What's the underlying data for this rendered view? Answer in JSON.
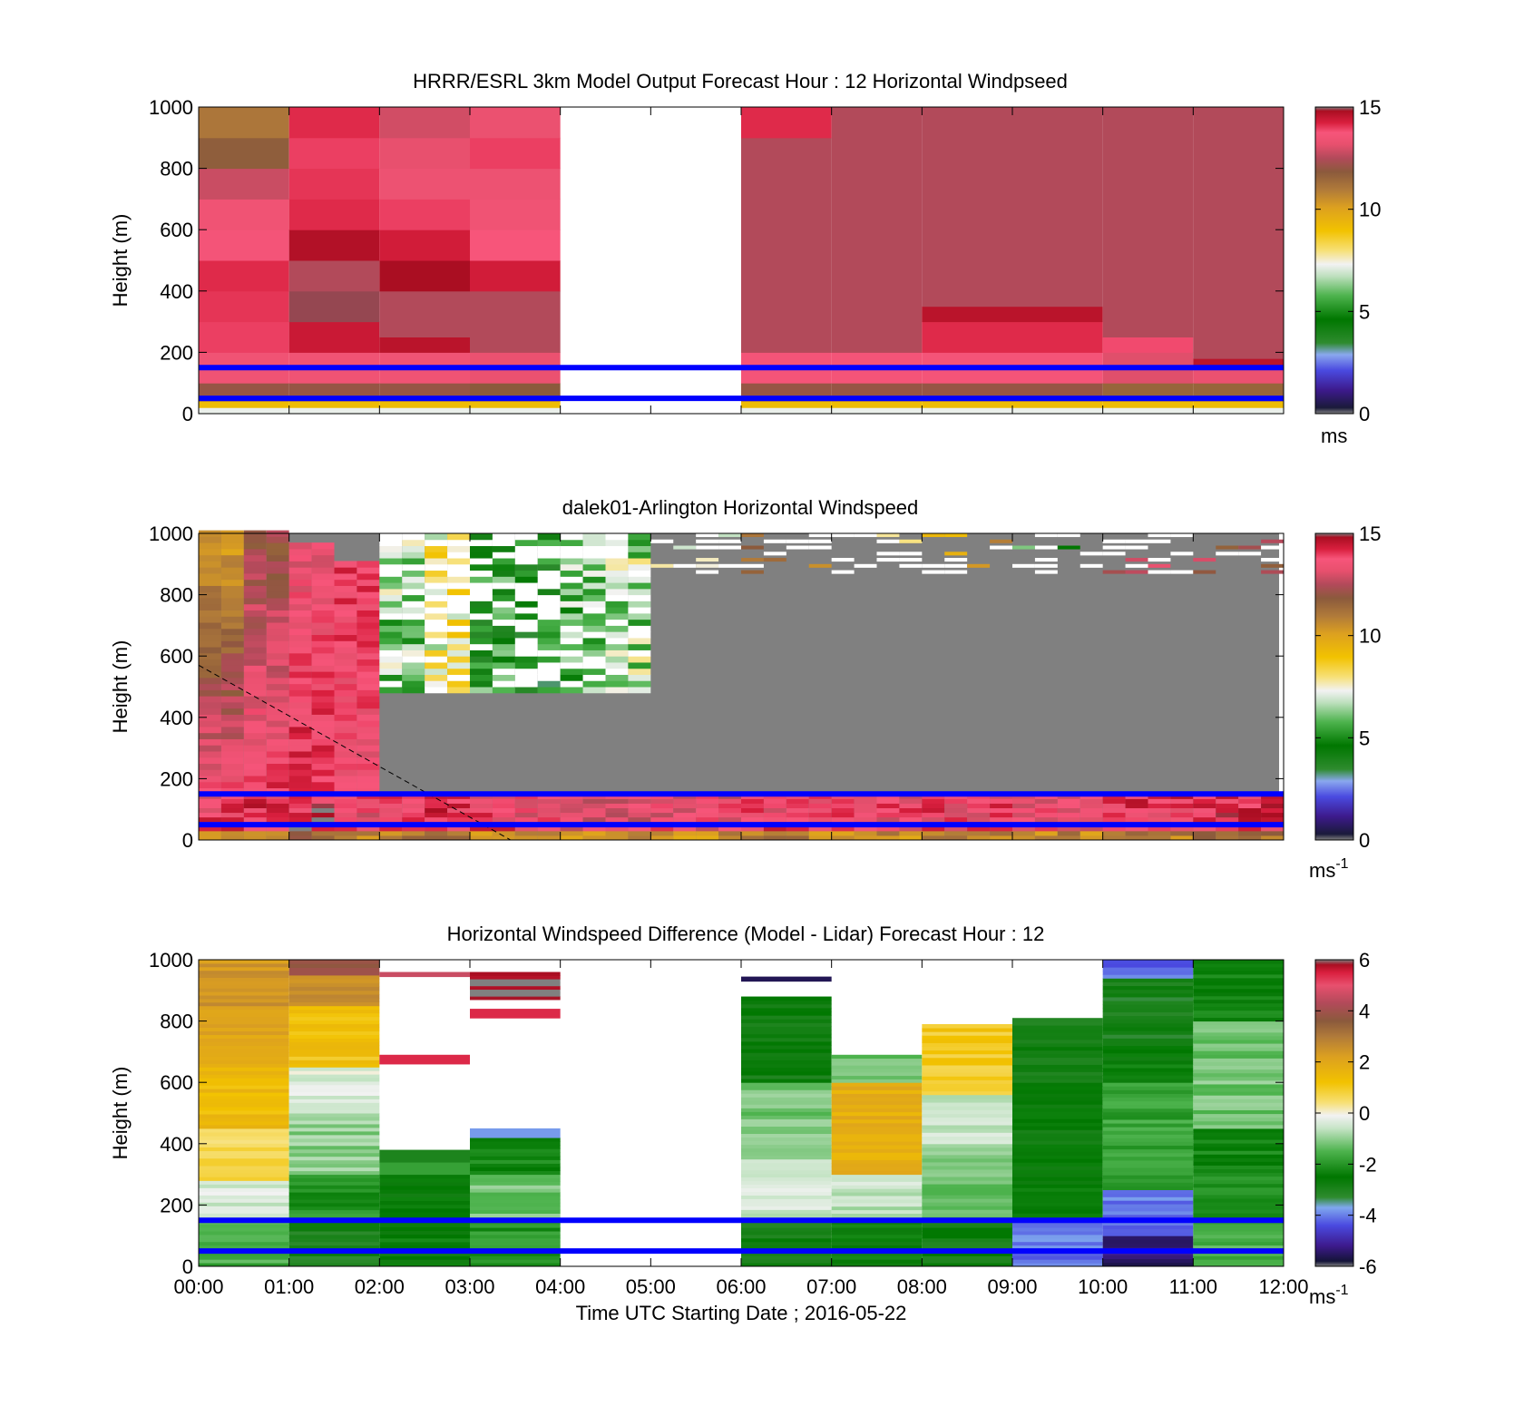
{
  "chart_data": [
    {
      "type": "heatmap",
      "title": "HRRR/ESRL 3km Model Output   Forecast Hour : 12 Horizontal Windpseed",
      "ylabel": "Height (m)",
      "xlabel": "",
      "ylim": [
        0,
        1000
      ],
      "yticks": [
        "0",
        "200",
        "400",
        "600",
        "800",
        "1000"
      ],
      "x_range_hours": [
        0,
        12
      ],
      "grid": false,
      "colorbar": {
        "ticks": [
          "0",
          "5",
          "10",
          "15"
        ],
        "min": 0,
        "max": 15,
        "unit_label": "ms",
        "unit_superscript": ""
      },
      "overlay_lines_m": [
        50,
        150
      ],
      "columns": [
        {
          "t0": 0,
          "t1": 1,
          "cells": [
            [
              0,
              20,
              7.5
            ],
            [
              20,
              40,
              9.5
            ],
            [
              40,
              60,
              11
            ],
            [
              60,
              100,
              12.5
            ],
            [
              100,
              200,
              14
            ],
            [
              200,
              300,
              14.5
            ],
            [
              300,
              400,
              14.6
            ],
            [
              400,
              500,
              14.7
            ],
            [
              500,
              600,
              14.2
            ],
            [
              600,
              700,
              14
            ],
            [
              700,
              800,
              13.3
            ],
            [
              800,
              900,
              12.2
            ],
            [
              900,
              1000,
              11.5
            ]
          ]
        },
        {
          "t0": 1,
          "t1": 2,
          "cells": [
            [
              0,
              20,
              7.5
            ],
            [
              20,
              40,
              9.5
            ],
            [
              40,
              60,
              11
            ],
            [
              60,
              100,
              12.5
            ],
            [
              100,
              200,
              14
            ],
            [
              200,
              300,
              15
            ],
            [
              300,
              400,
              15.5
            ],
            [
              400,
              500,
              13
            ],
            [
              500,
              600,
              15.3
            ],
            [
              600,
              700,
              14.7
            ],
            [
              700,
              800,
              14.6
            ],
            [
              800,
              900,
              14.5
            ],
            [
              900,
              1000,
              14.7
            ]
          ]
        },
        {
          "t0": 2,
          "t1": 3,
          "cells": [
            [
              0,
              20,
              7.5
            ],
            [
              20,
              40,
              9.5
            ],
            [
              40,
              60,
              11
            ],
            [
              60,
              100,
              12.5
            ],
            [
              100,
              200,
              14
            ],
            [
              200,
              250,
              15.2
            ],
            [
              250,
              400,
              13
            ],
            [
              400,
              500,
              15.4
            ],
            [
              500,
              600,
              14.9
            ],
            [
              600,
              700,
              14.5
            ],
            [
              700,
              800,
              13.9
            ],
            [
              800,
              900,
              13.7
            ],
            [
              900,
              1000,
              13.4
            ]
          ]
        },
        {
          "t0": 3,
          "t1": 4,
          "cells": [
            [
              0,
              20,
              7.5
            ],
            [
              20,
              40,
              9.5
            ],
            [
              40,
              60,
              11
            ],
            [
              60,
              100,
              12.3
            ],
            [
              100,
              200,
              13.8
            ],
            [
              200,
              400,
              13
            ],
            [
              400,
              500,
              14.9
            ],
            [
              500,
              600,
              14.3
            ],
            [
              600,
              700,
              14
            ],
            [
              700,
              800,
              13.9
            ],
            [
              800,
              900,
              14.5
            ],
            [
              900,
              1000,
              13.8
            ]
          ]
        },
        {
          "t0": 6,
          "t1": 7,
          "cells": [
            [
              0,
              20,
              7.5
            ],
            [
              20,
              40,
              9.5
            ],
            [
              40,
              60,
              11
            ],
            [
              60,
              100,
              12.5
            ],
            [
              100,
              200,
              14.2
            ],
            [
              200,
              900,
              13
            ],
            [
              900,
              1000,
              14.7
            ]
          ]
        },
        {
          "t0": 7,
          "t1": 8,
          "cells": [
            [
              0,
              20,
              7.5
            ],
            [
              20,
              40,
              9.5
            ],
            [
              40,
              60,
              11
            ],
            [
              60,
              100,
              12.5
            ],
            [
              100,
              200,
              14.2
            ],
            [
              200,
              1000,
              13
            ]
          ]
        },
        {
          "t0": 8,
          "t1": 9,
          "cells": [
            [
              0,
              20,
              7.5
            ],
            [
              20,
              40,
              9.5
            ],
            [
              40,
              60,
              11
            ],
            [
              60,
              100,
              12.5
            ],
            [
              100,
              200,
              14.2
            ],
            [
              200,
              300,
              14.7
            ],
            [
              300,
              350,
              15.2
            ],
            [
              350,
              1000,
              13
            ]
          ]
        },
        {
          "t0": 9,
          "t1": 10,
          "cells": [
            [
              0,
              20,
              7.5
            ],
            [
              20,
              40,
              9.5
            ],
            [
              40,
              60,
              11
            ],
            [
              60,
              100,
              12.5
            ],
            [
              100,
              200,
              14.2
            ],
            [
              200,
              300,
              14.7
            ],
            [
              300,
              350,
              15.2
            ],
            [
              350,
              1000,
              13
            ]
          ]
        },
        {
          "t0": 10,
          "t1": 11,
          "cells": [
            [
              0,
              20,
              7.5
            ],
            [
              20,
              40,
              9.5
            ],
            [
              40,
              60,
              11
            ],
            [
              60,
              100,
              12
            ],
            [
              100,
              200,
              13.6
            ],
            [
              200,
              250,
              14.4
            ],
            [
              250,
              1000,
              13
            ]
          ]
        },
        {
          "t0": 11,
          "t1": 12,
          "cells": [
            [
              0,
              20,
              7.5
            ],
            [
              20,
              40,
              9.5
            ],
            [
              40,
              60,
              11
            ],
            [
              60,
              100,
              12
            ],
            [
              100,
              150,
              13.8
            ],
            [
              150,
              180,
              15.2
            ],
            [
              180,
              1000,
              13
            ]
          ]
        }
      ]
    },
    {
      "type": "heatmap",
      "title": "dalek01-Arlington  Horizontal Windspeed",
      "ylabel": "Height (m)",
      "xlabel": "",
      "ylim": [
        0,
        1000
      ],
      "yticks": [
        "0",
        "200",
        "400",
        "600",
        "800",
        "1000"
      ],
      "x_range_hours": [
        0,
        12
      ],
      "grid": false,
      "colorbar": {
        "ticks": [
          "0",
          "5",
          "10",
          "15"
        ],
        "min": 0,
        "max": 15,
        "unit_label": "ms",
        "unit_superscript": "-1"
      },
      "overlay_lines_m": [
        50,
        150
      ],
      "boundary_layer_line": {
        "from": [
          0,
          570
        ],
        "to": [
          3.45,
          0
        ]
      },
      "profile_summary": [
        {
          "t0": 0.0,
          "t1": 0.5,
          "top_m": 1000,
          "upper_ms": 10.5,
          "lower_ms": 14.2
        },
        {
          "t0": 0.5,
          "t1": 1.0,
          "top_m": 1000,
          "upper_ms": 12.5,
          "lower_ms": 14.5
        },
        {
          "t0": 1.0,
          "t1": 1.5,
          "top_m": 960,
          "upper_ms": 13.8,
          "lower_ms": 14.8
        },
        {
          "t0": 1.5,
          "t1": 2.0,
          "top_m": 900,
          "upper_ms": 14.5,
          "lower_ms": 14.0
        },
        {
          "t0": 2.0,
          "t1": 2.5,
          "top_m": 1000,
          "upper_ms": 6.5,
          "lower_ms": 14.5
        },
        {
          "t0": 2.5,
          "t1": 3.0,
          "top_m": 1000,
          "upper_ms": 8.0,
          "lower_ms": 14.5
        },
        {
          "t0": 3.0,
          "t1": 3.5,
          "top_m": 1000,
          "upper_ms": 5.2,
          "lower_ms": 14.2
        },
        {
          "t0": 3.5,
          "t1": 4.0,
          "top_m": 1000,
          "upper_ms": 4.8,
          "lower_ms": 14.0
        },
        {
          "t0": 4.0,
          "t1": 4.5,
          "top_m": 1000,
          "upper_ms": 6.2,
          "lower_ms": 13.8
        },
        {
          "t0": 4.5,
          "t1": 5.0,
          "top_m": 1000,
          "upper_ms": 6.8,
          "lower_ms": 13.6
        },
        {
          "t0": 5.0,
          "t1": 6.0,
          "top_m": 1000,
          "upper_ms": 7.5,
          "lower_ms": 13.8
        },
        {
          "t0": 6.0,
          "t1": 7.0,
          "top_m": 1000,
          "upper_ms": 11.5,
          "lower_ms": 14.2
        },
        {
          "t0": 7.0,
          "t1": 8.0,
          "top_m": 1000,
          "upper_ms": 9.0,
          "lower_ms": 14.0
        },
        {
          "t0": 8.0,
          "t1": 9.0,
          "top_m": 1000,
          "upper_ms": 10.5,
          "lower_ms": 14.2
        },
        {
          "t0": 9.0,
          "t1": 10.0,
          "top_m": 1000,
          "upper_ms": 5.5,
          "lower_ms": 14.0
        },
        {
          "t0": 10.0,
          "t1": 11.0,
          "top_m": 1000,
          "upper_ms": 13.0,
          "lower_ms": 14.4
        },
        {
          "t0": 11.0,
          "t1": 12.0,
          "top_m": 1000,
          "upper_ms": 13.0,
          "lower_ms": 14.6
        }
      ]
    },
    {
      "type": "heatmap",
      "title": "Horizontal Windspeed Difference (Model - Lidar) Forecast Hour : 12",
      "ylabel": "Height (m)",
      "xlabel": "Time UTC  Starting Date ; 2016-05-22",
      "xticks": [
        "00:00",
        "01:00",
        "02:00",
        "03:00",
        "04:00",
        "05:00",
        "06:00",
        "07:00",
        "08:00",
        "09:00",
        "10:00",
        "11:00",
        "12:00"
      ],
      "ylim": [
        0,
        1000
      ],
      "yticks": [
        "0",
        "200",
        "400",
        "600",
        "800",
        "1000"
      ],
      "x_range_hours": [
        0,
        12
      ],
      "grid": false,
      "colorbar": {
        "ticks": [
          "-6",
          "-4",
          "-2",
          "0",
          "2",
          "4",
          "6"
        ],
        "min": -6,
        "max": 6,
        "unit_label": "ms",
        "unit_superscript": "-1"
      },
      "overlay_lines_m": [
        50,
        150
      ],
      "columns": [
        {
          "t0": 0,
          "t1": 1,
          "cells": [
            [
              0,
              150,
              -1.6
            ],
            [
              150,
              280,
              -0.4
            ],
            [
              280,
              450,
              0.6
            ],
            [
              450,
              650,
              1.4
            ],
            [
              650,
              850,
              2.0
            ],
            [
              850,
              1000,
              2.4
            ]
          ]
        },
        {
          "t0": 1,
          "t1": 2,
          "cells": [
            [
              0,
              150,
              -3.0
            ],
            [
              150,
              300,
              -2.0
            ],
            [
              300,
              500,
              -1.0
            ],
            [
              500,
              650,
              -0.3
            ],
            [
              650,
              850,
              1.2
            ],
            [
              850,
              950,
              2.6
            ],
            [
              950,
              1000,
              3.6
            ]
          ]
        },
        {
          "t0": 2,
          "t1": 3,
          "cells": [
            [
              0,
              80,
              -2.6
            ],
            [
              80,
              300,
              -2.5
            ],
            [
              300,
              340,
              -1.8
            ],
            [
              340,
              380,
              -3.0
            ],
            [
              660,
              690,
              5.4
            ],
            [
              945,
              960,
              4.6
            ]
          ]
        },
        {
          "t0": 3,
          "t1": 4,
          "cells": [
            [
              0,
              150,
              -2.0
            ],
            [
              150,
              300,
              -1.2
            ],
            [
              300,
              420,
              -2.3
            ],
            [
              420,
              450,
              -3.8
            ],
            [
              810,
              840,
              5.4
            ],
            [
              870,
              960,
              6.0
            ]
          ]
        },
        {
          "t0": 6,
          "t1": 7,
          "cells": [
            [
              0,
              150,
              -2.8
            ],
            [
              150,
              350,
              -0.5
            ],
            [
              350,
              600,
              -1.2
            ],
            [
              600,
              880,
              -2.8
            ],
            [
              930,
              945,
              -5.6
            ]
          ]
        },
        {
          "t0": 7,
          "t1": 8,
          "cells": [
            [
              0,
              150,
              -2.5
            ],
            [
              150,
              300,
              -0.6
            ],
            [
              300,
              600,
              1.8
            ],
            [
              600,
              690,
              -1.3
            ]
          ]
        },
        {
          "t0": 8,
          "t1": 9,
          "cells": [
            [
              0,
              150,
              -2.8
            ],
            [
              150,
              400,
              -1.2
            ],
            [
              400,
              560,
              -0.5
            ],
            [
              560,
              790,
              1.0
            ]
          ]
        },
        {
          "t0": 9,
          "t1": 10,
          "cells": [
            [
              0,
              150,
              -4.0
            ],
            [
              150,
              600,
              -2.6
            ],
            [
              600,
              810,
              -2.9
            ]
          ]
        },
        {
          "t0": 10,
          "t1": 11,
          "cells": [
            [
              0,
              100,
              -5.4
            ],
            [
              100,
              250,
              -4.0
            ],
            [
              250,
              600,
              -1.8
            ],
            [
              600,
              720,
              -2.5
            ],
            [
              720,
              940,
              -3.0
            ],
            [
              940,
              1000,
              -4.2
            ]
          ]
        },
        {
          "t0": 11,
          "t1": 12,
          "cells": [
            [
              0,
              150,
              -1.5
            ],
            [
              150,
              450,
              -2.2
            ],
            [
              450,
              800,
              -1.2
            ],
            [
              800,
              1000,
              -2.4
            ]
          ]
        }
      ]
    }
  ]
}
